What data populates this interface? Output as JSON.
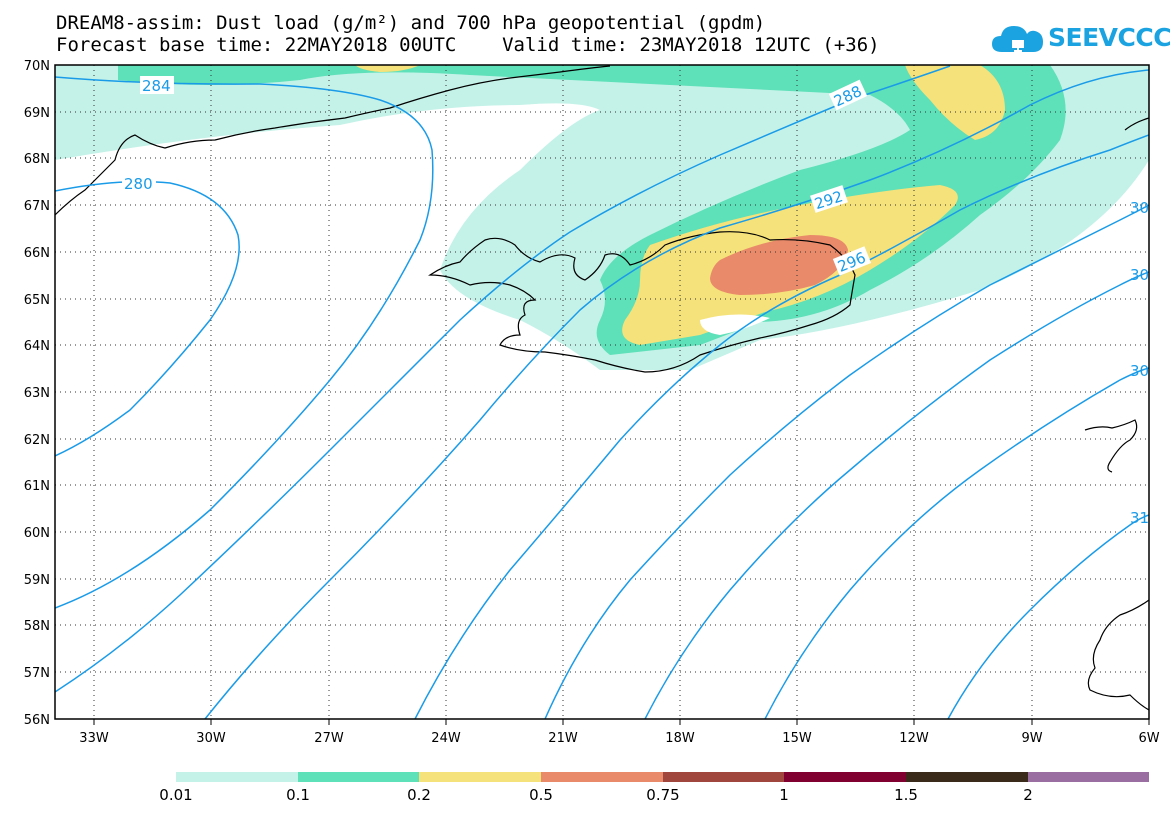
{
  "header": {
    "line1": "DREAM8-assim: Dust load (g/m²) and 700 hPa geopotential (gpdm)",
    "line2": "Forecast base time: 22MAY2018 00UTC    Valid time: 23MAY2018 12UTC (+36)"
  },
  "logo": {
    "text": "SEEVCCC",
    "icon": "cloud-icon",
    "color": "#1aa3e0"
  },
  "map": {
    "lat_labels": [
      "70N",
      "69N",
      "68N",
      "67N",
      "66N",
      "65N",
      "64N",
      "63N",
      "62N",
      "61N",
      "60N",
      "59N",
      "58N",
      "57N",
      "56N"
    ],
    "lon_labels": [
      "33W",
      "30W",
      "27W",
      "24W",
      "21W",
      "18W",
      "15W",
      "12W",
      "9W",
      "6W"
    ],
    "contour_labels": [
      "284",
      "280",
      "288",
      "292",
      "296",
      "30",
      "30",
      "30",
      "31"
    ],
    "contour_color": "#1a9be8",
    "dust_colors": {
      "c1": "#c4f2e8",
      "c2": "#5ee0b8",
      "c3": "#f5e27a",
      "c4": "#e98a6a"
    }
  },
  "colorbar": {
    "labels": [
      "0.01",
      "0.1",
      "0.2",
      "0.5",
      "0.75",
      "1",
      "1.5",
      "2"
    ],
    "colors": [
      "#c4f2e8",
      "#5ee0b8",
      "#f5e27a",
      "#e98a6a",
      "#a0463c",
      "#800030",
      "#3a2a1a",
      "#9a6ea0"
    ]
  }
}
